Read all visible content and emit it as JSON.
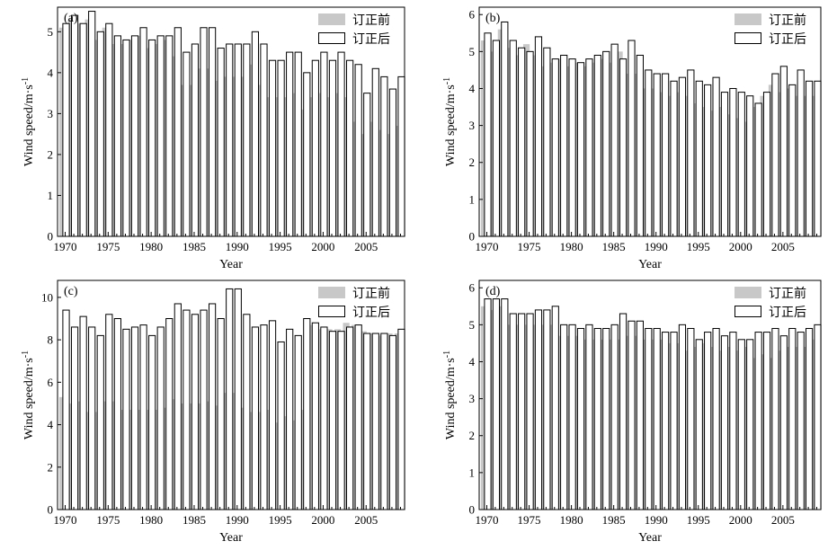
{
  "chart_data": [
    {
      "type": "bar",
      "panel_label": "(a)",
      "xlabel": "Year",
      "ylabel": "Wind speed/m·s",
      "ylabel_sup": "-1",
      "ylim": [
        0,
        5.6
      ],
      "yticks": [
        0,
        1,
        2,
        3,
        4,
        5
      ],
      "x_tick_labels": [
        "1970",
        "1975",
        "1980",
        "1985",
        "1990",
        "1995",
        "2000",
        "2005"
      ],
      "x_tick_years": [
        1970,
        1975,
        1980,
        1985,
        1990,
        1995,
        2000,
        2005
      ],
      "x": [
        1970,
        1971,
        1972,
        1973,
        1974,
        1975,
        1976,
        1977,
        1978,
        1979,
        1980,
        1981,
        1982,
        1983,
        1984,
        1985,
        1986,
        1987,
        1988,
        1989,
        1990,
        1991,
        1992,
        1993,
        1994,
        1995,
        1996,
        1997,
        1998,
        1999,
        2000,
        2001,
        2002,
        2003,
        2004,
        2005,
        2006,
        2007,
        2008,
        2009
      ],
      "series": [
        {
          "name": "订正前",
          "values": [
            5.1,
            5.3,
            5.2,
            5.3,
            4.8,
            5.1,
            4.7,
            4.7,
            4.8,
            4.9,
            4.6,
            4.7,
            4.8,
            4.4,
            3.7,
            3.7,
            4.1,
            4.1,
            3.8,
            3.9,
            3.9,
            3.9,
            4.2,
            3.7,
            3.4,
            3.4,
            3.4,
            3.5,
            3.1,
            3.4,
            3.5,
            3.4,
            3.5,
            3.4,
            2.8,
            2.5,
            2.8,
            2.6,
            2.5,
            2.7
          ]
        },
        {
          "name": "订正后",
          "values": [
            5.2,
            5.4,
            5.2,
            5.5,
            5.0,
            5.2,
            4.9,
            4.8,
            4.9,
            5.1,
            4.8,
            4.9,
            4.9,
            5.1,
            4.5,
            4.7,
            5.1,
            5.1,
            4.6,
            4.7,
            4.7,
            4.7,
            5.0,
            4.7,
            4.3,
            4.3,
            4.5,
            4.5,
            4.0,
            4.3,
            4.5,
            4.3,
            4.5,
            4.3,
            4.2,
            3.5,
            4.1,
            3.9,
            3.6,
            3.9
          ]
        }
      ],
      "legend_position": "top-right"
    },
    {
      "type": "bar",
      "panel_label": "(b)",
      "xlabel": "Year",
      "ylabel": "Wind speed/m·s",
      "ylabel_sup": "-1",
      "ylim": [
        0,
        6.2
      ],
      "yticks": [
        0,
        1,
        2,
        3,
        4,
        5,
        6
      ],
      "x_tick_labels": [
        "1970",
        "1975",
        "1980",
        "1985",
        "1990",
        "1995",
        "2000",
        "2005"
      ],
      "x_tick_years": [
        1970,
        1975,
        1980,
        1985,
        1990,
        1995,
        2000,
        2005
      ],
      "x": [
        1970,
        1971,
        1972,
        1973,
        1974,
        1975,
        1976,
        1977,
        1978,
        1979,
        1980,
        1981,
        1982,
        1983,
        1984,
        1985,
        1986,
        1987,
        1988,
        1989,
        1990,
        1991,
        1992,
        1993,
        1994,
        1995,
        1996,
        1997,
        1998,
        1999,
        2000,
        2001,
        2002,
        2003,
        2004,
        2005,
        2006,
        2007,
        2008,
        2009
      ],
      "series": [
        {
          "name": "订正前",
          "values": [
            5.3,
            5.0,
            5.6,
            5.1,
            4.9,
            5.2,
            4.9,
            4.6,
            4.7,
            4.8,
            4.6,
            4.7,
            4.6,
            4.7,
            4.8,
            4.7,
            5.0,
            4.4,
            4.4,
            4.0,
            4.0,
            3.9,
            3.8,
            3.9,
            3.8,
            3.6,
            3.5,
            3.4,
            3.5,
            3.3,
            3.2,
            3.1,
            3.5,
            3.8,
            4.1,
            3.9,
            4.0,
            3.8,
            3.8,
            3.8
          ]
        },
        {
          "name": "订正后",
          "values": [
            5.5,
            5.3,
            5.8,
            5.3,
            5.1,
            5.0,
            5.4,
            5.1,
            4.8,
            4.9,
            4.8,
            4.7,
            4.8,
            4.9,
            5.0,
            5.2,
            4.8,
            5.3,
            4.9,
            4.5,
            4.4,
            4.4,
            4.2,
            4.3,
            4.5,
            4.2,
            4.1,
            4.3,
            3.9,
            4.0,
            3.9,
            3.8,
            3.6,
            3.9,
            4.4,
            4.6,
            4.1,
            4.5,
            4.2,
            4.2
          ]
        }
      ],
      "legend_position": "top-right"
    },
    {
      "type": "bar",
      "panel_label": "(c)",
      "xlabel": "Year",
      "ylabel": "Wind speed/m·s",
      "ylabel_sup": "-1",
      "ylim": [
        0,
        10.8
      ],
      "yticks": [
        0,
        2,
        4,
        6,
        8,
        10
      ],
      "x_tick_labels": [
        "1970",
        "1975",
        "1980",
        "1985",
        "1990",
        "1995",
        "2000",
        "2005"
      ],
      "x_tick_years": [
        1970,
        1975,
        1980,
        1985,
        1990,
        1995,
        2000,
        2005
      ],
      "x": [
        1970,
        1971,
        1972,
        1973,
        1974,
        1975,
        1976,
        1977,
        1978,
        1979,
        1980,
        1981,
        1982,
        1983,
        1984,
        1985,
        1986,
        1987,
        1988,
        1989,
        1990,
        1991,
        1992,
        1993,
        1994,
        1995,
        1996,
        1997,
        1998,
        1999,
        2000,
        2001,
        2002,
        2003,
        2004,
        2005,
        2006,
        2007,
        2008,
        2009
      ],
      "series": [
        {
          "name": "订正前",
          "values": [
            5.3,
            5.0,
            5.1,
            4.6,
            4.6,
            5.1,
            5.1,
            4.7,
            4.7,
            4.7,
            4.7,
            4.7,
            4.8,
            5.2,
            5.0,
            5.0,
            5.0,
            5.1,
            4.9,
            5.5,
            5.5,
            4.8,
            4.6,
            4.6,
            4.7,
            4.1,
            4.4,
            4.2,
            4.7,
            8.7,
            8.5,
            8.5,
            8.5,
            8.8,
            8.7,
            8.4,
            8.3,
            8.2,
            8.3,
            8.3
          ]
        },
        {
          "name": "订正后",
          "values": [
            9.4,
            8.6,
            9.1,
            8.6,
            8.2,
            9.2,
            9.0,
            8.5,
            8.6,
            8.7,
            8.2,
            8.6,
            9.0,
            9.7,
            9.4,
            9.2,
            9.4,
            9.7,
            9.0,
            10.4,
            10.4,
            9.2,
            8.6,
            8.7,
            8.9,
            7.9,
            8.5,
            8.2,
            9.0,
            8.8,
            8.6,
            8.4,
            8.4,
            8.6,
            8.7,
            8.3,
            8.3,
            8.3,
            8.2,
            8.5
          ]
        }
      ],
      "legend_position": "top-right"
    },
    {
      "type": "bar",
      "panel_label": "(d)",
      "xlabel": "Year",
      "ylabel": "Wind speed/m·s",
      "ylabel_sup": "-1",
      "ylim": [
        0,
        6.2
      ],
      "yticks": [
        0,
        1,
        2,
        3,
        4,
        5,
        6
      ],
      "x_tick_labels": [
        "1970",
        "1975",
        "1980",
        "1985",
        "1990",
        "1995",
        "2000",
        "2005"
      ],
      "x_tick_years": [
        1970,
        1975,
        1980,
        1985,
        1990,
        1995,
        2000,
        2005
      ],
      "x": [
        1970,
        1971,
        1972,
        1973,
        1974,
        1975,
        1976,
        1977,
        1978,
        1979,
        1980,
        1981,
        1982,
        1983,
        1984,
        1985,
        1986,
        1987,
        1988,
        1989,
        1990,
        1991,
        1992,
        1993,
        1994,
        1995,
        1996,
        1997,
        1998,
        1999,
        2000,
        2001,
        2002,
        2003,
        2004,
        2005,
        2006,
        2007,
        2008,
        2009
      ],
      "series": [
        {
          "name": "订正前",
          "values": [
            5.5,
            5.4,
            5.5,
            5.0,
            5.0,
            5.0,
            5.0,
            5.0,
            5.0,
            4.7,
            4.7,
            4.7,
            4.6,
            4.6,
            4.6,
            4.6,
            4.6,
            4.7,
            4.7,
            4.6,
            4.6,
            4.6,
            4.5,
            4.5,
            4.3,
            4.4,
            4.5,
            4.4,
            4.3,
            4.4,
            4.3,
            4.4,
            4.1,
            4.2,
            4.1,
            4.3,
            4.4,
            4.4,
            4.4,
            4.6
          ]
        },
        {
          "name": "订正后",
          "values": [
            5.7,
            5.7,
            5.7,
            5.3,
            5.3,
            5.3,
            5.4,
            5.4,
            5.5,
            5.0,
            5.0,
            4.9,
            5.0,
            4.9,
            4.9,
            5.0,
            5.3,
            5.1,
            5.1,
            4.9,
            4.9,
            4.8,
            4.8,
            5.0,
            4.9,
            4.6,
            4.8,
            4.9,
            4.7,
            4.8,
            4.6,
            4.6,
            4.8,
            4.8,
            4.9,
            4.7,
            4.9,
            4.8,
            4.9,
            5.0
          ]
        }
      ],
      "legend_position": "top-right"
    }
  ],
  "colors": {
    "series_before_fill": "#c8c8c8",
    "series_after_fill": "#ffffff",
    "axis": "#000000"
  }
}
